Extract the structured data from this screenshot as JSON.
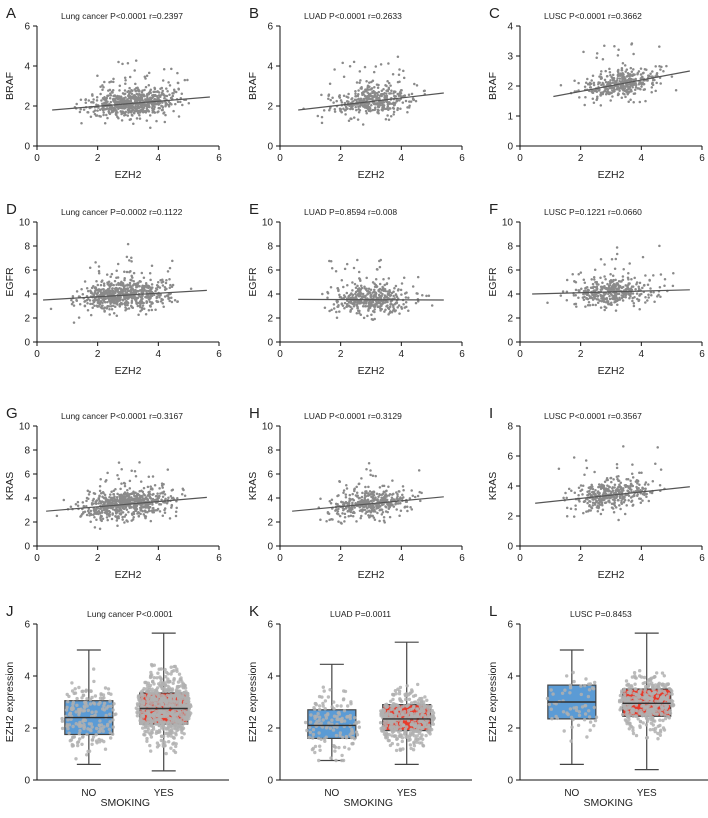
{
  "chart_data": [
    {
      "type": "scatter",
      "letter": "A",
      "title": "Lung cancer P<0.0001   r=0.2397",
      "xlabel": "EZH2",
      "ylabel": "BRAF",
      "xlim": [
        0,
        6
      ],
      "ylim": [
        0,
        6
      ],
      "xticks": [
        0,
        2,
        4,
        6
      ],
      "yticks": [
        0,
        2,
        4,
        6
      ],
      "n_points": 650,
      "x_range": [
        0.5,
        5.7
      ],
      "fit": {
        "x": [
          0.5,
          5.7
        ],
        "y": [
          1.8,
          2.45
        ]
      }
    },
    {
      "type": "scatter",
      "letter": "B",
      "title": "LUAD P<0.0001   r=0.2633",
      "xlabel": "EZH2",
      "ylabel": "BRAF",
      "xlim": [
        0,
        6
      ],
      "ylim": [
        0,
        6
      ],
      "xticks": [
        0,
        2,
        4,
        6
      ],
      "yticks": [
        0,
        2,
        4,
        6
      ],
      "n_points": 420,
      "x_range": [
        0.6,
        5.4
      ],
      "fit": {
        "x": [
          0.6,
          5.4
        ],
        "y": [
          1.8,
          2.65
        ]
      }
    },
    {
      "type": "scatter",
      "letter": "C",
      "title": "LUSC P<0.0001   r=0.3662",
      "xlabel": "EZH2",
      "ylabel": "BRAF",
      "xlim": [
        0,
        6
      ],
      "ylim": [
        0,
        4
      ],
      "xticks": [
        0,
        2,
        4,
        6
      ],
      "yticks": [
        0,
        1,
        2,
        3,
        4
      ],
      "n_points": 380,
      "x_range": [
        1.1,
        5.6
      ],
      "fit": {
        "x": [
          1.1,
          5.6
        ],
        "y": [
          1.65,
          2.5
        ]
      }
    },
    {
      "type": "scatter",
      "letter": "D",
      "title": "Lung cancer P=0.0002   r=0.1122",
      "xlabel": "EZH2",
      "ylabel": "EGFR",
      "xlim": [
        0,
        6
      ],
      "ylim": [
        0,
        10
      ],
      "xticks": [
        0,
        2,
        4,
        6
      ],
      "yticks": [
        0,
        2,
        4,
        6,
        8,
        10
      ],
      "n_points": 650,
      "x_range": [
        0.2,
        5.6
      ],
      "fit": {
        "x": [
          0.2,
          5.6
        ],
        "y": [
          3.5,
          4.3
        ]
      }
    },
    {
      "type": "scatter",
      "letter": "E",
      "title": "LUAD P=0.8594   r=0.008",
      "xlabel": "EZH2",
      "ylabel": "EGFR",
      "xlim": [
        0,
        6
      ],
      "ylim": [
        0,
        10
      ],
      "xticks": [
        0,
        2,
        4,
        6
      ],
      "yticks": [
        0,
        2,
        4,
        6,
        8,
        10
      ],
      "n_points": 420,
      "x_range": [
        0.6,
        5.4
      ],
      "fit": {
        "x": [
          0.6,
          5.4
        ],
        "y": [
          3.55,
          3.5
        ]
      }
    },
    {
      "type": "scatter",
      "letter": "F",
      "title": "LUSC P=0.1221   r=0.0660",
      "xlabel": "EZH2",
      "ylabel": "EGFR",
      "xlim": [
        0,
        6
      ],
      "ylim": [
        0,
        10
      ],
      "xticks": [
        0,
        2,
        4,
        6
      ],
      "yticks": [
        0,
        2,
        4,
        6,
        8,
        10
      ],
      "n_points": 380,
      "x_range": [
        0.4,
        5.6
      ],
      "fit": {
        "x": [
          0.4,
          5.6
        ],
        "y": [
          4.0,
          4.35
        ]
      }
    },
    {
      "type": "scatter",
      "letter": "G",
      "title": "Lung cancer  P<0.0001   r=0.3167",
      "xlabel": "EZH2",
      "ylabel": "KRAS",
      "xlim": [
        0,
        6
      ],
      "ylim": [
        0,
        10
      ],
      "xticks": [
        0,
        2,
        4,
        6
      ],
      "yticks": [
        0,
        2,
        4,
        6,
        8,
        10
      ],
      "n_points": 650,
      "x_range": [
        0.3,
        5.6
      ],
      "fit": {
        "x": [
          0.3,
          5.6
        ],
        "y": [
          2.9,
          4.05
        ]
      }
    },
    {
      "type": "scatter",
      "letter": "H",
      "title": "LUAD  P<0.0001   r=0.3129",
      "xlabel": "EZH2",
      "ylabel": "KRAS",
      "xlim": [
        0,
        6
      ],
      "ylim": [
        0,
        10
      ],
      "xticks": [
        0,
        2,
        4,
        6
      ],
      "yticks": [
        0,
        2,
        4,
        6,
        8,
        10
      ],
      "n_points": 420,
      "x_range": [
        0.4,
        5.4
      ],
      "fit": {
        "x": [
          0.4,
          5.4
        ],
        "y": [
          2.9,
          4.1
        ]
      }
    },
    {
      "type": "scatter",
      "letter": "I",
      "title": "LUSC P<0.0001   r=0.3567",
      "xlabel": "EZH2",
      "ylabel": "KRAS",
      "xlim": [
        0,
        6
      ],
      "ylim": [
        0,
        8
      ],
      "xticks": [
        0,
        2,
        4,
        6
      ],
      "yticks": [
        0,
        2,
        4,
        6,
        8
      ],
      "n_points": 380,
      "x_range": [
        0.5,
        5.6
      ],
      "fit": {
        "x": [
          0.5,
          5.6
        ],
        "y": [
          2.85,
          3.95
        ]
      }
    },
    {
      "type": "box",
      "letter": "J",
      "title": "Lung cancer   P<0.0001",
      "xlabel": "SMOKING",
      "ylabel": "EZH2 expression",
      "ylim": [
        0,
        6
      ],
      "yticks": [
        0,
        2,
        4,
        6
      ],
      "categories": [
        "NO",
        "YES"
      ],
      "colors": [
        "#5b9bd5",
        "#e8392a"
      ],
      "boxes": [
        {
          "min": 0.6,
          "q1": 1.75,
          "median": 2.4,
          "q3": 3.05,
          "max": 5.0,
          "n_points": 180
        },
        {
          "min": 0.35,
          "q1": 2.15,
          "median": 2.75,
          "q3": 3.35,
          "max": 5.65,
          "n_points": 650
        }
      ]
    },
    {
      "type": "box",
      "letter": "K",
      "title": "LUAD   P=0.0011",
      "xlabel": "SMOKING",
      "ylabel": "EZH2 expression",
      "ylim": [
        0,
        6
      ],
      "yticks": [
        0,
        2,
        4,
        6
      ],
      "categories": [
        "NO",
        "YES"
      ],
      "colors": [
        "#5b9bd5",
        "#e8392a"
      ],
      "boxes": [
        {
          "min": 0.75,
          "q1": 1.6,
          "median": 2.1,
          "q3": 2.7,
          "max": 4.45,
          "n_points": 140
        },
        {
          "min": 0.6,
          "q1": 1.9,
          "median": 2.35,
          "q3": 2.9,
          "max": 5.3,
          "n_points": 380
        }
      ]
    },
    {
      "type": "box",
      "letter": "L",
      "title": "LUSC  P=0.8453",
      "xlabel": "SMOKING",
      "ylabel": "EZH2 expression",
      "ylim": [
        0,
        6
      ],
      "yticks": [
        0,
        2,
        4,
        6
      ],
      "categories": [
        "NO",
        "YES"
      ],
      "colors": [
        "#5b9bd5",
        "#e8392a"
      ],
      "boxes": [
        {
          "min": 0.6,
          "q1": 2.35,
          "median": 3.0,
          "q3": 3.65,
          "max": 5.0,
          "n_points": 60
        },
        {
          "min": 0.4,
          "q1": 2.45,
          "median": 2.95,
          "q3": 3.5,
          "max": 5.65,
          "n_points": 380
        }
      ]
    }
  ]
}
